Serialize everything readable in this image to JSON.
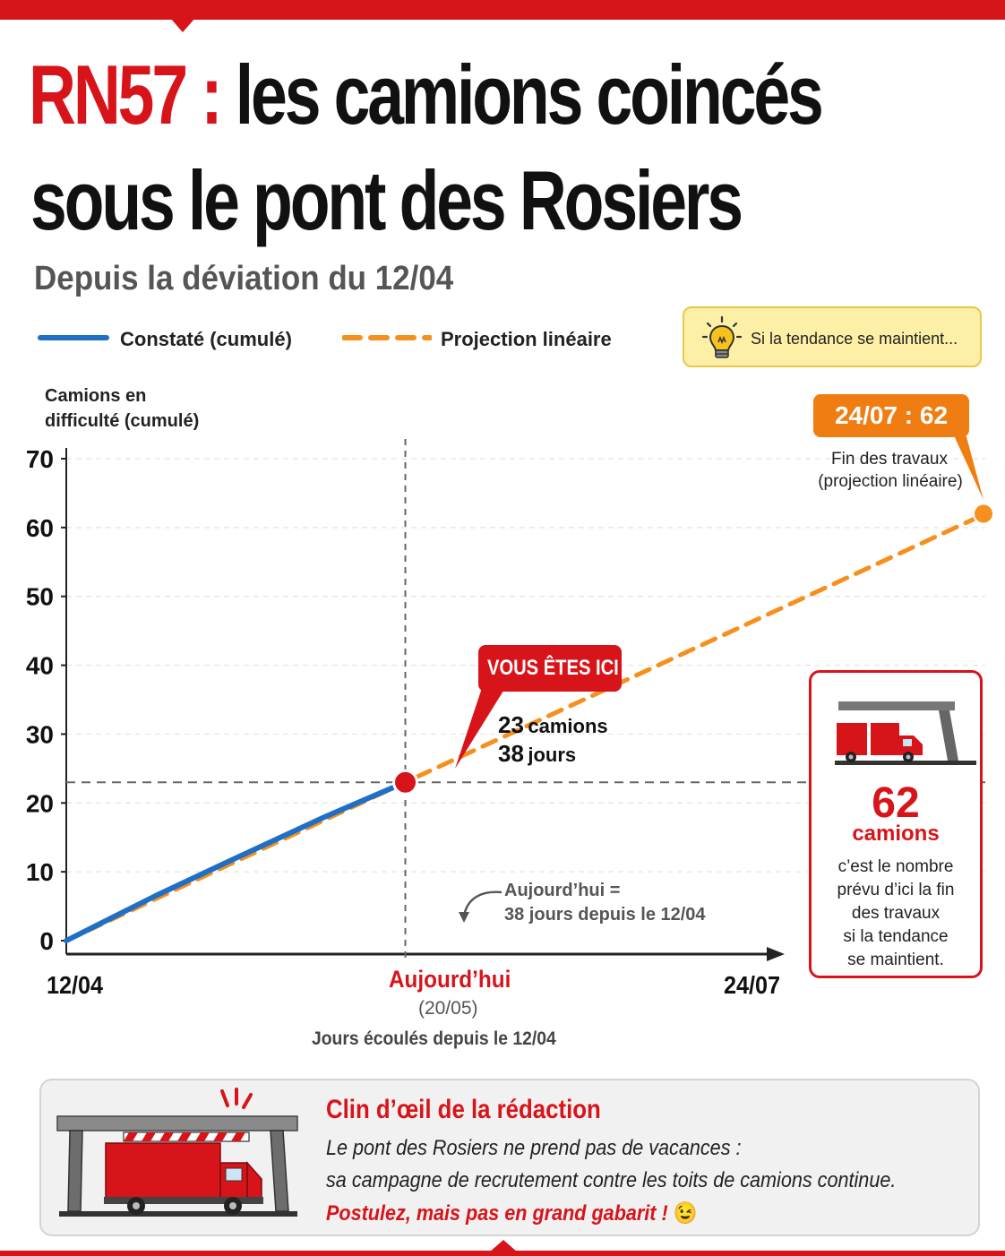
{
  "header": {
    "title_part1": "RN57 :",
    "title_part2": "les camions coincés",
    "title_line2": "sous le pont des Rosiers",
    "subtitle": "Depuis la déviation du 12/04"
  },
  "legend": {
    "observed": "Constaté (cumulé)",
    "projection": "Projection linéaire",
    "tip": "Si la tendance se maintient..."
  },
  "colors": {
    "accent": "#d7141a",
    "observed": "#1f6fc6",
    "projection": "#f5901e",
    "tip_bg": "#fdf0a6"
  },
  "chart_data": {
    "type": "line",
    "ylabel": "Camions en difficulté (cumulé)",
    "xlabel": "Jours écoulés depuis le 12/04",
    "ylim": [
      0,
      70
    ],
    "yticks": [
      0,
      10,
      20,
      30,
      40,
      50,
      60,
      70
    ],
    "xlim": [
      "12/04",
      "24/07"
    ],
    "x_tick_labels": [
      "12/04",
      "24/07"
    ],
    "grid": true,
    "series": [
      {
        "name": "Constaté (cumulé)",
        "style": "solid",
        "points": [
          {
            "x": "12/04",
            "y": 0
          },
          {
            "x": "22/04",
            "y": 6.5
          },
          {
            "x": "01/05",
            "y": 12
          },
          {
            "x": "11/05",
            "y": 18
          },
          {
            "x": "20/05",
            "y": 23
          }
        ]
      },
      {
        "name": "Projection linéaire",
        "style": "dashed",
        "points": [
          {
            "x": "12/04",
            "y": 0
          },
          {
            "x": "20/05",
            "y": 23
          },
          {
            "x": "24/07",
            "y": 62
          }
        ]
      }
    ],
    "today": {
      "date": "20/05",
      "value": 23,
      "days": 38
    },
    "end": {
      "date": "24/07",
      "value": 62
    }
  },
  "annotations": {
    "you_are_here": "VOUS ÊTES ICI",
    "today_value_num": "23",
    "today_value_unit": "camions",
    "today_days_num": "38",
    "today_days_unit": "jours",
    "today_label": "Aujourd’hui",
    "today_date": "(20/05)",
    "today_note_line1": "Aujourd’hui =",
    "today_note_line2": "38 jours depuis le 12/04",
    "end_badge": "24/07 : 62",
    "end_note_line1": "Fin des travaux",
    "end_note_line2": "(projection linéaire)"
  },
  "side_card": {
    "big_number": "62",
    "unit": "camions",
    "text_lines": [
      "c’est le nombre",
      "prévu d’ici la fin",
      "des travaux",
      "si la tendance",
      "se maintient."
    ]
  },
  "note": {
    "title": "Clin d’œil de la rédaction",
    "line1": "Le pont des Rosiers ne prend pas de vacances :",
    "line2": "sa campagne de recrutement contre les toits de camions continue.",
    "line3": "Postulez, mais pas en grand gabarit !",
    "emoji": "😉"
  }
}
